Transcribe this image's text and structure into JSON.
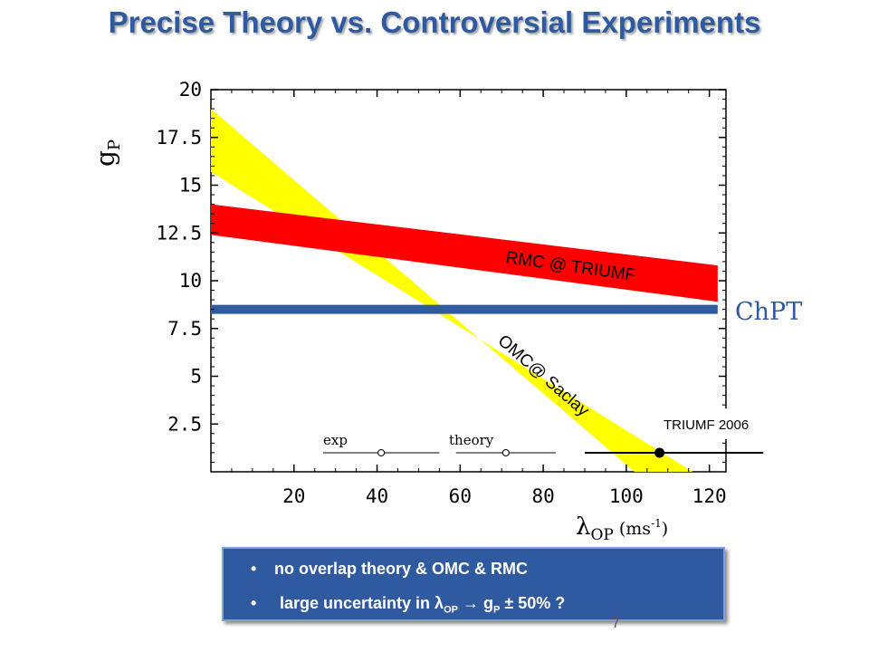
{
  "slide": {
    "title": "Precise Theory vs. Controversial Experiments",
    "page_number": "7"
  },
  "chart_data": {
    "type": "area",
    "xlim": [
      0,
      124
    ],
    "ylim": [
      0,
      20
    ],
    "x_ticks": [
      "20",
      "40",
      "60",
      "80",
      "100",
      "120"
    ],
    "y_ticks": [
      "20",
      "17.5",
      "15",
      "12.5",
      "10",
      "7.5",
      "5",
      "2.5"
    ],
    "ylabel_main": "g",
    "ylabel_sub": "P",
    "xlabel_main": "λ",
    "xlabel_sub": "OP",
    "xlabel_unit": "(ms",
    "xlabel_unit_sup": "-1",
    "xlabel_unit_close": ")",
    "omc_band": {
      "label": "OMC@ Saclay",
      "color": "#ffff00",
      "upper": [
        [
          0,
          19.0
        ],
        [
          102,
          0
        ]
      ],
      "lower": [
        [
          0,
          15.7
        ],
        [
          116,
          0
        ]
      ]
    },
    "rmc_band": {
      "label": "RMC @ TRIUMF",
      "color": "#ff0000",
      "upper": [
        [
          0,
          14.0
        ],
        [
          122,
          10.8
        ]
      ],
      "lower": [
        [
          0,
          12.4
        ],
        [
          122,
          8.9
        ]
      ]
    },
    "chpt_line": {
      "label": "ChPT",
      "value": 8.5,
      "color": "#2f5aa0"
    },
    "error_bars": [
      {
        "name": "exp",
        "center": 41,
        "low": 27,
        "high": 55,
        "filled": false
      },
      {
        "name": "theory",
        "center": 71,
        "low": 59,
        "high": 83,
        "filled": false
      },
      {
        "name": "TRIUMF 2006",
        "center": 108,
        "low": 90,
        "high": 133,
        "filled": true
      }
    ]
  },
  "summary": {
    "bullet_char": "•",
    "line1": "no overlap theory & OMC & RMC",
    "line2_text": "large uncertainty in λ",
    "line2_sub": "OP",
    "line2_arrow": "→ g",
    "line2_sub2": "P",
    "line2_tail": "± 50% ?"
  }
}
